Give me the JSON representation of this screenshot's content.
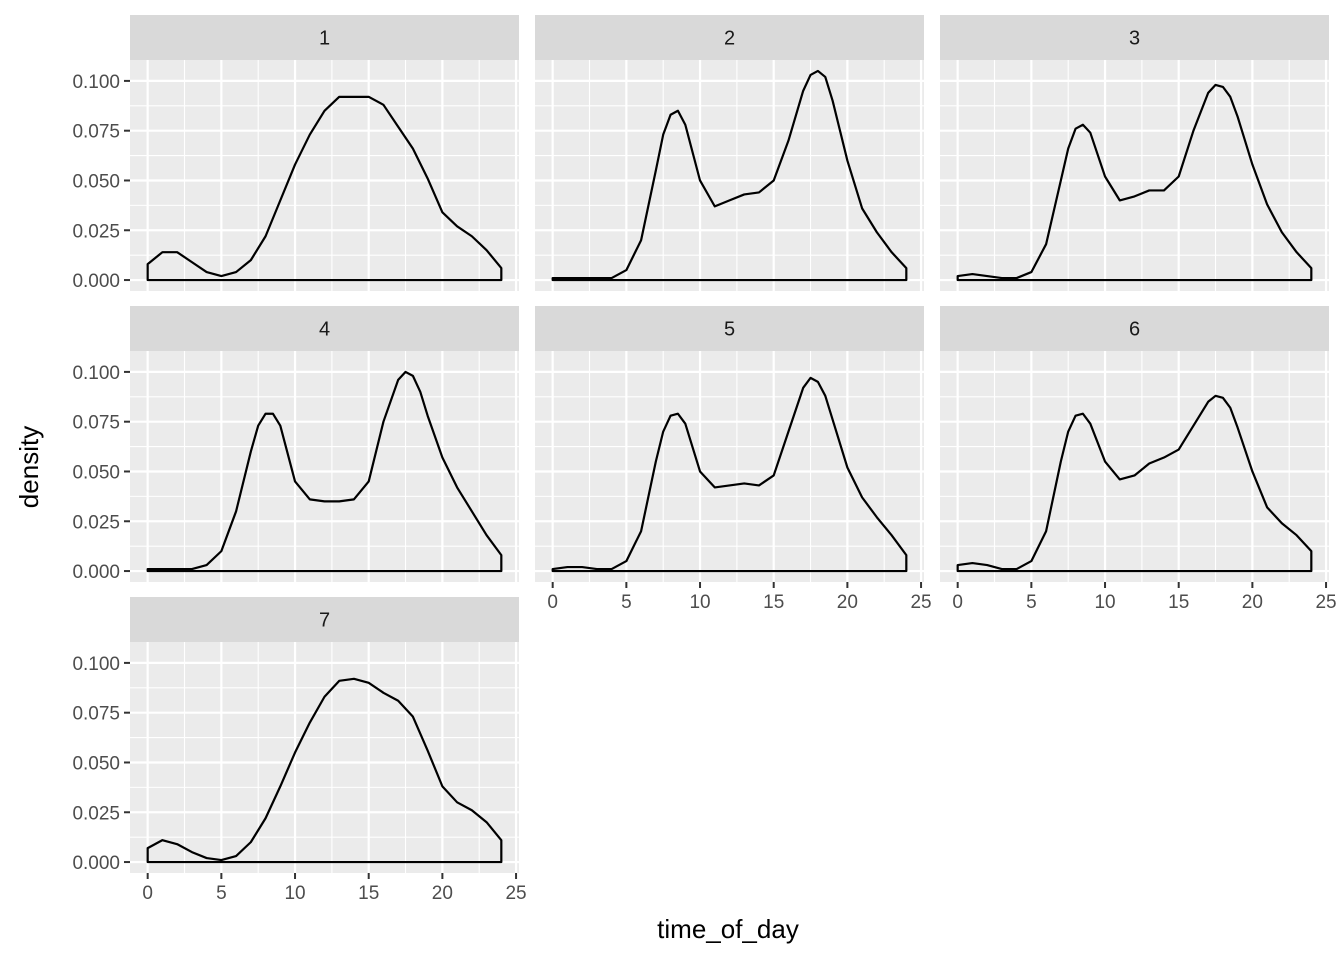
{
  "chart_data": {
    "type": "area",
    "facet_type": "facet_wrap",
    "xlabel": "time_of_day",
    "ylabel": "density",
    "xlim": [
      -1.2,
      25.2
    ],
    "ylim": [
      -0.0055,
      0.1105
    ],
    "x_ticks": [
      0,
      5,
      10,
      15,
      20,
      25
    ],
    "x_tick_labels": [
      "0",
      "5",
      "10",
      "15",
      "20",
      "25"
    ],
    "y_ticks": [
      0,
      0.025,
      0.05,
      0.075,
      0.1
    ],
    "y_tick_labels": [
      "0.000",
      "0.025",
      "0.050",
      "0.075",
      "0.100"
    ],
    "grid": true,
    "panels": [
      {
        "label": "1",
        "x": [
          0,
          1,
          2,
          3,
          4,
          5,
          6,
          7,
          8,
          9,
          10,
          11,
          12,
          13,
          14,
          15,
          16,
          17,
          18,
          19,
          20,
          21,
          22,
          23,
          24
        ],
        "y": [
          0.008,
          0.014,
          0.014,
          0.009,
          0.004,
          0.002,
          0.004,
          0.01,
          0.022,
          0.04,
          0.058,
          0.073,
          0.085,
          0.092,
          0.092,
          0.092,
          0.088,
          0.077,
          0.066,
          0.051,
          0.034,
          0.027,
          0.022,
          0.015,
          0.006
        ]
      },
      {
        "label": "2",
        "x": [
          0,
          1,
          2,
          3,
          4,
          5,
          6,
          7,
          7.5,
          8,
          8.5,
          9,
          10,
          11,
          12,
          13,
          14,
          15,
          16,
          17,
          17.5,
          18,
          18.5,
          19,
          20,
          21,
          22,
          23,
          24
        ],
        "y": [
          0.001,
          0.001,
          0.001,
          0.001,
          0.001,
          0.005,
          0.02,
          0.055,
          0.073,
          0.083,
          0.085,
          0.078,
          0.05,
          0.037,
          0.04,
          0.043,
          0.044,
          0.05,
          0.07,
          0.095,
          0.103,
          0.105,
          0.102,
          0.09,
          0.06,
          0.036,
          0.024,
          0.014,
          0.006
        ]
      },
      {
        "label": "3",
        "x": [
          0,
          1,
          2,
          3,
          4,
          5,
          6,
          7,
          7.5,
          8,
          8.5,
          9,
          10,
          11,
          12,
          13,
          14,
          15,
          16,
          17,
          17.5,
          18,
          18.5,
          19,
          20,
          21,
          22,
          23,
          24
        ],
        "y": [
          0.002,
          0.003,
          0.002,
          0.001,
          0.001,
          0.004,
          0.018,
          0.05,
          0.066,
          0.076,
          0.078,
          0.074,
          0.052,
          0.04,
          0.042,
          0.045,
          0.045,
          0.052,
          0.075,
          0.094,
          0.098,
          0.097,
          0.092,
          0.082,
          0.058,
          0.038,
          0.024,
          0.014,
          0.006
        ]
      },
      {
        "label": "4",
        "x": [
          0,
          1,
          2,
          3,
          4,
          5,
          6,
          7,
          7.5,
          8,
          8.5,
          9,
          10,
          11,
          12,
          13,
          14,
          15,
          16,
          17,
          17.5,
          18,
          18.5,
          19,
          20,
          21,
          22,
          23,
          24
        ],
        "y": [
          0.001,
          0.001,
          0.001,
          0.001,
          0.003,
          0.01,
          0.03,
          0.06,
          0.073,
          0.079,
          0.079,
          0.073,
          0.045,
          0.036,
          0.035,
          0.035,
          0.036,
          0.045,
          0.075,
          0.096,
          0.1,
          0.098,
          0.09,
          0.078,
          0.057,
          0.042,
          0.03,
          0.018,
          0.008
        ]
      },
      {
        "label": "5",
        "x": [
          0,
          1,
          2,
          3,
          4,
          5,
          6,
          7,
          7.5,
          8,
          8.5,
          9,
          10,
          11,
          12,
          13,
          14,
          15,
          16,
          17,
          17.5,
          18,
          18.5,
          19,
          20,
          21,
          22,
          23,
          24
        ],
        "y": [
          0.001,
          0.002,
          0.002,
          0.001,
          0.001,
          0.005,
          0.02,
          0.055,
          0.07,
          0.078,
          0.079,
          0.074,
          0.05,
          0.042,
          0.043,
          0.044,
          0.043,
          0.048,
          0.07,
          0.092,
          0.097,
          0.095,
          0.088,
          0.076,
          0.052,
          0.037,
          0.027,
          0.018,
          0.008
        ]
      },
      {
        "label": "6",
        "x": [
          0,
          1,
          2,
          3,
          4,
          5,
          6,
          7,
          7.5,
          8,
          8.5,
          9,
          10,
          11,
          12,
          13,
          14,
          15,
          16,
          17,
          17.5,
          18,
          18.5,
          19,
          20,
          21,
          22,
          23,
          24
        ],
        "y": [
          0.003,
          0.004,
          0.003,
          0.001,
          0.001,
          0.005,
          0.02,
          0.055,
          0.07,
          0.078,
          0.079,
          0.074,
          0.055,
          0.046,
          0.048,
          0.054,
          0.057,
          0.061,
          0.073,
          0.085,
          0.088,
          0.087,
          0.082,
          0.072,
          0.05,
          0.032,
          0.024,
          0.018,
          0.01
        ]
      },
      {
        "label": "7",
        "x": [
          0,
          1,
          2,
          3,
          4,
          5,
          6,
          7,
          8,
          9,
          10,
          11,
          12,
          13,
          14,
          15,
          16,
          17,
          18,
          19,
          20,
          21,
          22,
          23,
          24
        ],
        "y": [
          0.007,
          0.011,
          0.009,
          0.005,
          0.002,
          0.001,
          0.003,
          0.01,
          0.022,
          0.038,
          0.055,
          0.07,
          0.083,
          0.091,
          0.092,
          0.09,
          0.085,
          0.081,
          0.073,
          0.056,
          0.038,
          0.03,
          0.026,
          0.02,
          0.011
        ]
      }
    ]
  }
}
